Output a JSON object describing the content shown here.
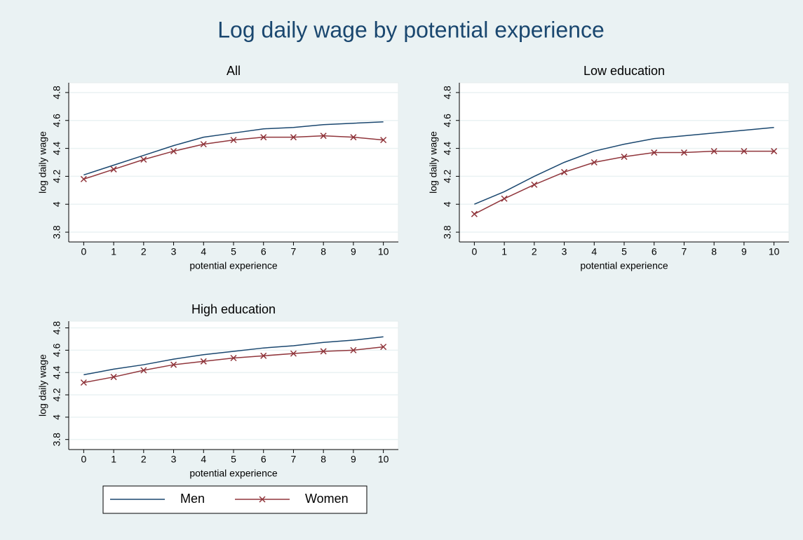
{
  "title": "Log daily wage by potential experience",
  "chart_data": [
    {
      "type": "line",
      "title": "All",
      "xlabel": "potential experience",
      "ylabel": "log daily wage",
      "x": [
        0,
        1,
        2,
        3,
        4,
        5,
        6,
        7,
        8,
        9,
        10
      ],
      "series": [
        {
          "name": "Men",
          "color": "#1a476f",
          "values": [
            4.21,
            4.28,
            4.35,
            4.42,
            4.48,
            4.51,
            4.54,
            4.55,
            4.57,
            4.58,
            4.59
          ]
        },
        {
          "name": "Women",
          "color": "#90353b",
          "marker": "x",
          "values": [
            4.18,
            4.25,
            4.32,
            4.38,
            4.43,
            4.46,
            4.48,
            4.48,
            4.49,
            4.48,
            4.46
          ]
        }
      ],
      "xlim": [
        -0.5,
        10.5
      ],
      "xticks": [
        0,
        1,
        2,
        3,
        4,
        5,
        6,
        7,
        8,
        9,
        10
      ],
      "ylim": [
        3.73,
        4.87
      ],
      "yticks": [
        3.8,
        4,
        4.2,
        4.4,
        4.6,
        4.8
      ],
      "grid": true
    },
    {
      "type": "line",
      "title": "Low education",
      "xlabel": "potential experience",
      "ylabel": "log daily wage",
      "x": [
        0,
        1,
        2,
        3,
        4,
        5,
        6,
        7,
        8,
        9,
        10
      ],
      "series": [
        {
          "name": "Men",
          "color": "#1a476f",
          "values": [
            4.0,
            4.09,
            4.2,
            4.3,
            4.38,
            4.43,
            4.47,
            4.49,
            4.51,
            4.53,
            4.55
          ]
        },
        {
          "name": "Women",
          "color": "#90353b",
          "marker": "x",
          "values": [
            3.93,
            4.04,
            4.14,
            4.23,
            4.3,
            4.34,
            4.37,
            4.37,
            4.38,
            4.38,
            4.38
          ]
        }
      ],
      "xlim": [
        -0.5,
        10.5
      ],
      "xticks": [
        0,
        1,
        2,
        3,
        4,
        5,
        6,
        7,
        8,
        9,
        10
      ],
      "ylim": [
        3.73,
        4.87
      ],
      "yticks": [
        3.8,
        4,
        4.2,
        4.4,
        4.6,
        4.8
      ],
      "grid": true
    },
    {
      "type": "line",
      "title": "High education",
      "xlabel": "potential experience",
      "ylabel": "log daily wage",
      "x": [
        0,
        1,
        2,
        3,
        4,
        5,
        6,
        7,
        8,
        9,
        10
      ],
      "series": [
        {
          "name": "Men",
          "color": "#1a476f",
          "values": [
            4.38,
            4.43,
            4.47,
            4.52,
            4.56,
            4.59,
            4.62,
            4.64,
            4.67,
            4.69,
            4.72
          ]
        },
        {
          "name": "Women",
          "color": "#90353b",
          "marker": "x",
          "values": [
            4.31,
            4.36,
            4.42,
            4.47,
            4.5,
            4.53,
            4.55,
            4.57,
            4.59,
            4.6,
            4.63
          ]
        }
      ],
      "xlim": [
        -0.5,
        10.5
      ],
      "xticks": [
        0,
        1,
        2,
        3,
        4,
        5,
        6,
        7,
        8,
        9,
        10
      ],
      "ylim": [
        3.71,
        4.86
      ],
      "yticks": [
        3.8,
        4,
        4.2,
        4.4,
        4.6,
        4.8
      ],
      "grid": true
    }
  ]
}
